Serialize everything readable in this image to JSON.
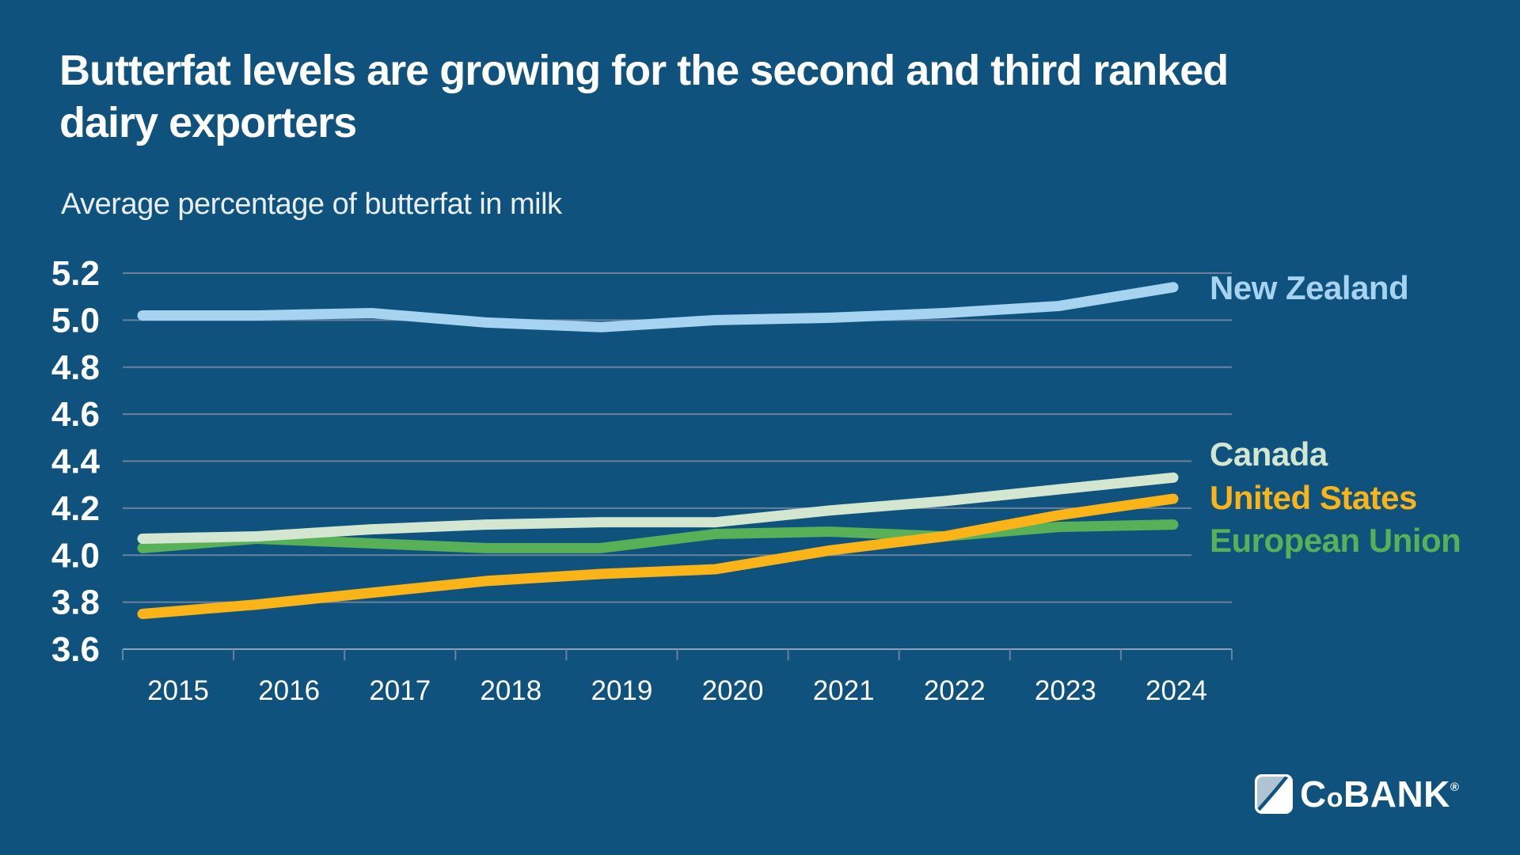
{
  "header": {
    "title_line1": "Butterfat levels are growing for the second and third ranked",
    "title_line2": "dairy exporters",
    "subtitle": "Average percentage of butterfat in milk"
  },
  "chart_data": {
    "type": "line",
    "title": "Butterfat levels are growing for the second and third ranked dairy exporters",
    "subtitle": "Average percentage of butterfat in milk",
    "categories": [
      2015,
      2016,
      2017,
      2018,
      2019,
      2020,
      2021,
      2022,
      2023,
      2024
    ],
    "y_ticks": [
      "5.2",
      "5.0",
      "4.8",
      "4.6",
      "4.4",
      "4.2",
      "4.0",
      "3.8",
      "3.6"
    ],
    "ylim": [
      3.6,
      5.2
    ],
    "grid": "horizontal",
    "legend_position": "right-of-line-ends",
    "series": [
      {
        "name": "New Zealand",
        "color": "#A5D3F0",
        "values": [
          5.02,
          5.02,
          5.03,
          4.99,
          4.97,
          5.0,
          5.01,
          5.03,
          5.06,
          5.14
        ]
      },
      {
        "name": "Canada",
        "color": "#D3E7D0",
        "values": [
          4.07,
          4.08,
          4.11,
          4.13,
          4.14,
          4.14,
          4.19,
          4.23,
          4.28,
          4.33
        ]
      },
      {
        "name": "United States",
        "color": "#FAB417",
        "values": [
          3.75,
          3.79,
          3.84,
          3.89,
          3.92,
          3.94,
          4.02,
          4.08,
          4.17,
          4.24
        ]
      },
      {
        "name": "European Union",
        "color": "#58B057",
        "values": [
          4.03,
          4.07,
          4.05,
          4.03,
          4.03,
          4.09,
          4.1,
          4.08,
          4.12,
          4.13
        ]
      }
    ]
  },
  "footer": {
    "logo": {
      "c": "C",
      "o": "o",
      "bank": "BANK",
      "registered": "®"
    }
  },
  "colors": {
    "background": "#0F527E",
    "gridline": "#6A829B",
    "axis_line": "#8DA2B5",
    "text": "#FFFFFF"
  }
}
